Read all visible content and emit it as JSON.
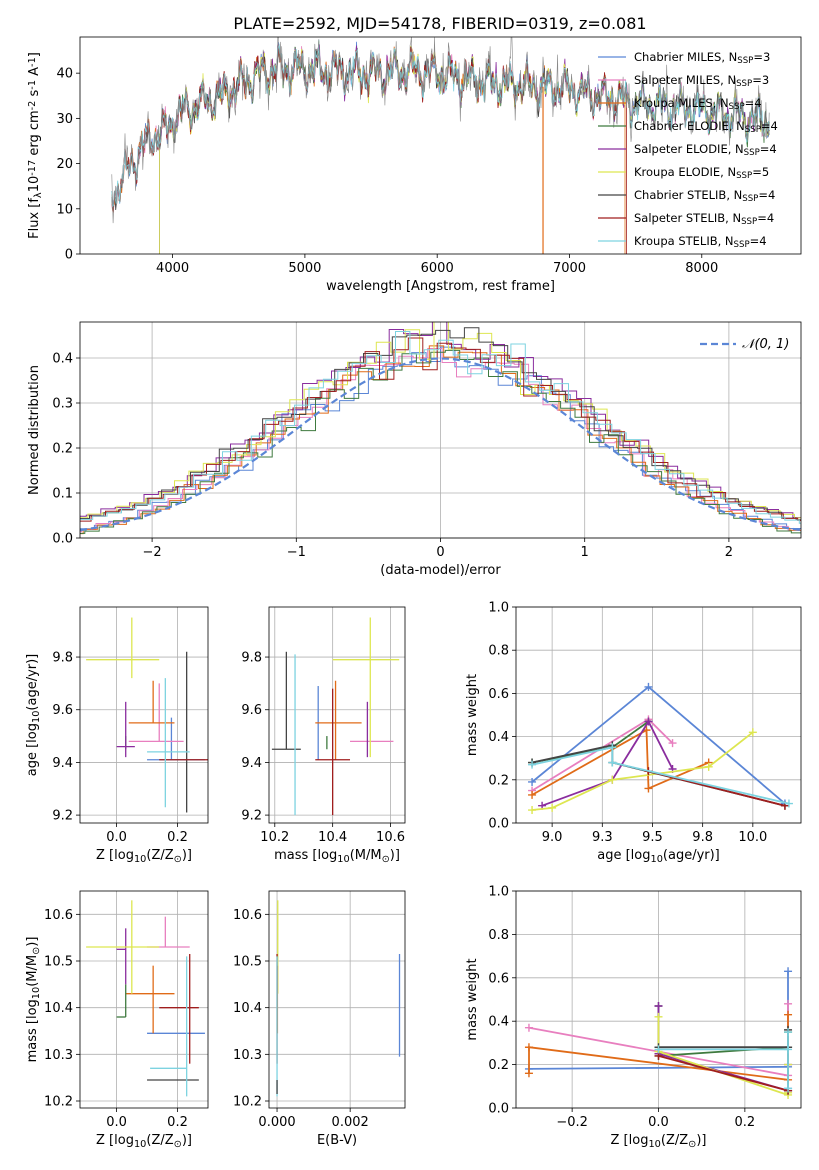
{
  "figure": {
    "title": "PLATE=2592, MJD=54178, FIBERID=0319, z=0.081"
  },
  "colors": {
    "Chabrier MILES": "#5b86d6",
    "Salpeter MILES": "#e87fbf",
    "Kroupa MILES": "#e06b18",
    "Chabrier ELODIE": "#3f7a3f",
    "Salpeter ELODIE": "#8a2d9e",
    "Kroupa ELODIE": "#dde650",
    "Chabrier STELIB": "#444444",
    "Salpeter STELIB": "#a01e1e",
    "Kroupa STELIB": "#7dd3e0",
    "data": "#888888",
    "normal": "#5b86d6"
  },
  "chart_data": [
    {
      "id": "spectrum",
      "type": "line",
      "xlabel": "wavelength [Angstrom, rest frame]",
      "ylabel": "Flux [f$_\\lambda$10$^{-17}$ erg cm$^{-2}$ s$^{-1}$ A$^{-1}$]",
      "xlim": [
        3300,
        8750
      ],
      "ylim": [
        0,
        48
      ],
      "xticks": [
        4000,
        5000,
        6000,
        7000,
        8000
      ],
      "yticks": [
        0,
        10,
        20,
        30,
        40
      ],
      "grid": false,
      "legend_position": "top-right",
      "legend": [
        {
          "label": "Chabrier MILES, N$_{SSP}$=3",
          "color_key": "Chabrier MILES"
        },
        {
          "label": "Salpeter MILES, N$_{SSP}$=3",
          "color_key": "Salpeter MILES"
        },
        {
          "label": "Kroupa MILES, N$_{SSP}$=4",
          "color_key": "Kroupa MILES"
        },
        {
          "label": "Chabrier ELODIE, N$_{SSP}$=4",
          "color_key": "Chabrier ELODIE"
        },
        {
          "label": "Salpeter ELODIE, N$_{SSP}$=4",
          "color_key": "Salpeter ELODIE"
        },
        {
          "label": "Kroupa ELODIE, N$_{SSP}$=5",
          "color_key": "Kroupa ELODIE"
        },
        {
          "label": "Chabrier STELIB, N$_{SSP}$=4",
          "color_key": "Chabrier STELIB"
        },
        {
          "label": "Salpeter STELIB, N$_{SSP}$=4",
          "color_key": "Salpeter STELIB"
        },
        {
          "label": "Kroupa STELIB, N$_{SSP}$=4",
          "color_key": "Kroupa STELIB"
        }
      ],
      "continuum": [
        [
          3550,
          13
        ],
        [
          3650,
          18
        ],
        [
          3750,
          23
        ],
        [
          3850,
          26
        ],
        [
          3950,
          27
        ],
        [
          4050,
          31
        ],
        [
          4200,
          33
        ],
        [
          4350,
          35
        ],
        [
          4500,
          37
        ],
        [
          4650,
          40
        ],
        [
          4800,
          41
        ],
        [
          5000,
          41
        ],
        [
          5200,
          40.5
        ],
        [
          5400,
          40
        ],
        [
          5600,
          40
        ],
        [
          5800,
          40.5
        ],
        [
          6000,
          40
        ],
        [
          6200,
          39
        ],
        [
          6400,
          38
        ],
        [
          6600,
          37.5
        ],
        [
          6800,
          37
        ],
        [
          7000,
          36.5
        ],
        [
          7200,
          35
        ],
        [
          7400,
          34
        ],
        [
          7600,
          33
        ],
        [
          7800,
          32.5
        ],
        [
          8000,
          32
        ],
        [
          8200,
          31
        ],
        [
          8400,
          30
        ],
        [
          8500,
          29.5
        ]
      ],
      "features": {
        "elodie_cutoff_wavelength": 3900,
        "stelib_cutoff_wavelength": 6800,
        "miles_cutoff_wavelength": 7420,
        "salpeter_stelib_end": 7430,
        "emission_line_wavelength": 6563,
        "emission_line_peak": 48
      }
    },
    {
      "id": "residuals",
      "type": "line",
      "xlabel": "(data-model)/error",
      "ylabel": "Normed distribution",
      "xlim": [
        -2.5,
        2.5
      ],
      "ylim": [
        0,
        0.48
      ],
      "xticks": [
        -2,
        -1,
        0,
        1,
        2
      ],
      "yticks": [
        0.0,
        0.1,
        0.2,
        0.3,
        0.4
      ],
      "grid": true,
      "legend_position": "top-right",
      "legend": [
        {
          "label": "$\\mathcal{N}(0, 1)$",
          "color_key": "normal"
        }
      ],
      "bin_width": 0.1,
      "n_models": 9
    },
    {
      "id": "age_vs_Z",
      "type": "scatter",
      "xlabel": "Z [log$_{10}$(Z/Z$_\\odot$)]",
      "ylabel": "age  [log$_{10}$(age/yr)]",
      "xlim": [
        -0.12,
        0.3
      ],
      "ylim": [
        9.17,
        9.99
      ],
      "xticks": [
        0.0,
        0.2
      ],
      "yticks": [
        9.2,
        9.4,
        9.6,
        9.8
      ],
      "grid": true,
      "points": [
        {
          "model": "Chabrier MILES",
          "x": 0.18,
          "xerr": [
            0.08,
            0.11
          ],
          "y": 9.41,
          "yerr": [
            0.0,
            0.16
          ]
        },
        {
          "model": "Salpeter MILES",
          "x": 0.14,
          "xerr": [
            0.1,
            0.08
          ],
          "y": 9.48,
          "yerr": [
            0.0,
            0.22
          ]
        },
        {
          "model": "Kroupa MILES",
          "x": 0.12,
          "xerr": [
            0.08,
            0.07
          ],
          "y": 9.55,
          "yerr": [
            0.0,
            0.16
          ]
        },
        {
          "model": "Chabrier ELODIE",
          "x": 0.03,
          "xerr": [
            0.0,
            0.0
          ],
          "y": 9.45,
          "yerr": [
            0.0,
            0.05
          ]
        },
        {
          "model": "Salpeter ELODIE",
          "x": 0.03,
          "xerr": [
            0.03,
            0.03
          ],
          "y": 9.46,
          "yerr": [
            0.04,
            0.17
          ]
        },
        {
          "model": "Kroupa ELODIE",
          "x": 0.05,
          "xerr": [
            0.15,
            0.09
          ],
          "y": 9.79,
          "yerr": [
            0.07,
            0.16
          ]
        },
        {
          "model": "Chabrier STELIB",
          "x": 0.23,
          "xerr": [
            0.0,
            0.0
          ],
          "y": 9.45,
          "yerr": [
            0.24,
            0.37
          ]
        },
        {
          "model": "Salpeter STELIB",
          "x": 0.24,
          "xerr": [
            0.1,
            0.06
          ],
          "y": 9.41,
          "yerr": [
            0.0,
            0.0
          ]
        },
        {
          "model": "Kroupa STELIB",
          "x": 0.16,
          "xerr": [
            0.06,
            0.08
          ],
          "y": 9.44,
          "yerr": [
            0.21,
            0.28
          ]
        }
      ]
    },
    {
      "id": "age_vs_mass",
      "type": "scatter",
      "xlabel": "mass [log$_{10}$(M/M$_\\odot$)]",
      "ylabel": "",
      "xlim": [
        10.18,
        10.65
      ],
      "ylim": [
        9.17,
        9.99
      ],
      "xticks": [
        10.2,
        10.4,
        10.6
      ],
      "yticks": [
        9.2,
        9.4,
        9.6,
        9.8
      ],
      "grid": true,
      "points": [
        {
          "model": "Chabrier MILES",
          "x": 10.35,
          "xerr": [
            0.0,
            0.0
          ],
          "y": 9.41,
          "yerr": [
            0.0,
            0.28
          ]
        },
        {
          "model": "Salpeter MILES",
          "x": 10.53,
          "xerr": [
            0.07,
            0.08
          ],
          "y": 9.48,
          "yerr": [
            0.0,
            0.0
          ]
        },
        {
          "model": "Kroupa MILES",
          "x": 10.41,
          "xerr": [
            0.07,
            0.09
          ],
          "y": 9.55,
          "yerr": [
            0.14,
            0.16
          ]
        },
        {
          "model": "Chabrier ELODIE",
          "x": 10.38,
          "xerr": [
            0.0,
            0.0
          ],
          "y": 9.45,
          "yerr": [
            0.0,
            0.05
          ]
        },
        {
          "model": "Salpeter ELODIE",
          "x": 10.52,
          "xerr": [
            0.0,
            0.0
          ],
          "y": 9.46,
          "yerr": [
            0.04,
            0.17
          ]
        },
        {
          "model": "Kroupa ELODIE",
          "x": 10.53,
          "xerr": [
            0.13,
            0.1
          ],
          "y": 9.79,
          "yerr": [
            0.37,
            0.16
          ]
        },
        {
          "model": "Chabrier STELIB",
          "x": 10.24,
          "xerr": [
            0.05,
            0.05
          ],
          "y": 9.45,
          "yerr": [
            0.0,
            0.37
          ]
        },
        {
          "model": "Salpeter STELIB",
          "x": 10.4,
          "xerr": [
            0.06,
            0.06
          ],
          "y": 9.41,
          "yerr": [
            0.21,
            0.27
          ]
        },
        {
          "model": "Kroupa STELIB",
          "x": 10.27,
          "xerr": [
            0.0,
            0.0
          ],
          "y": 9.44,
          "yerr": [
            0.24,
            0.37
          ]
        }
      ]
    },
    {
      "id": "weight_vs_age",
      "type": "line",
      "xlabel": "age  [log$_{10}$(age/yr)]",
      "ylabel": "mass weight",
      "xlim": [
        8.82,
        10.24
      ],
      "ylim": [
        0,
        1
      ],
      "xticks": [
        9.0,
        9.25,
        9.5,
        9.75,
        10.0
      ],
      "yticks": [
        0.0,
        0.2,
        0.4,
        0.6,
        0.8,
        1.0
      ],
      "grid": true,
      "series": [
        {
          "model": "Chabrier MILES",
          "x": [
            8.9,
            9.48,
            10.16
          ],
          "y": [
            0.19,
            0.63,
            0.09
          ]
        },
        {
          "model": "Salpeter MILES",
          "x": [
            8.9,
            9.48,
            9.6
          ],
          "y": [
            0.15,
            0.48,
            0.37
          ]
        },
        {
          "model": "Kroupa MILES",
          "x": [
            8.9,
            9.47,
            9.48,
            9.78
          ],
          "y": [
            0.13,
            0.43,
            0.16,
            0.28
          ]
        },
        {
          "model": "Chabrier ELODIE",
          "x": [
            8.9,
            9.3,
            9.48
          ],
          "y": [
            0.28,
            0.35,
            0.47
          ]
        },
        {
          "model": "Salpeter ELODIE",
          "x": [
            8.95,
            9.3,
            9.48,
            9.6
          ],
          "y": [
            0.08,
            0.2,
            0.47,
            0.25
          ]
        },
        {
          "model": "Kroupa ELODIE",
          "x": [
            8.9,
            9.0,
            9.3,
            9.78,
            10.0
          ],
          "y": [
            0.06,
            0.07,
            0.2,
            0.26,
            0.42
          ]
        },
        {
          "model": "Chabrier STELIB",
          "x": [
            8.9,
            9.3,
            9.3,
            10.16
          ],
          "y": [
            0.28,
            0.36,
            0.28,
            0.08
          ]
        },
        {
          "model": "Salpeter STELIB",
          "x": [
            9.48,
            10.16
          ],
          "y": [
            0.24,
            0.08
          ]
        },
        {
          "model": "Kroupa STELIB",
          "x": [
            8.9,
            9.3,
            9.3,
            10.18
          ],
          "y": [
            0.27,
            0.35,
            0.28,
            0.09
          ]
        }
      ]
    },
    {
      "id": "mass_vs_Z",
      "type": "scatter",
      "xlabel": "Z [log$_{10}$(Z/Z$_\\odot$)]",
      "ylabel": "mass [log$_{10}$(M/M$_\\odot$)]",
      "xlim": [
        -0.12,
        0.3
      ],
      "ylim": [
        10.185,
        10.65
      ],
      "xticks": [
        0.0,
        0.2
      ],
      "yticks": [
        10.2,
        10.3,
        10.4,
        10.5,
        10.6
      ],
      "grid": true,
      "points": [
        {
          "model": "Chabrier MILES",
          "x": 0.18,
          "xerr": [
            0.08,
            0.11
          ],
          "y": 10.345,
          "yerr": [
            0.0,
            0.0
          ]
        },
        {
          "model": "Salpeter MILES",
          "x": 0.16,
          "xerr": [
            0.06,
            0.08
          ],
          "y": 10.53,
          "yerr": [
            0.0,
            0.065
          ]
        },
        {
          "model": "Kroupa MILES",
          "x": 0.12,
          "xerr": [
            0.09,
            0.07
          ],
          "y": 10.43,
          "yerr": [
            0.085,
            0.06
          ]
        },
        {
          "model": "Chabrier ELODIE",
          "x": 0.03,
          "xerr": [
            0.03,
            0.0
          ],
          "y": 10.38,
          "yerr": [
            0.0,
            0.07
          ]
        },
        {
          "model": "Salpeter ELODIE",
          "x": 0.03,
          "xerr": [
            0.03,
            0.0
          ],
          "y": 10.525,
          "yerr": [
            0.075,
            0.045
          ]
        },
        {
          "model": "Kroupa ELODIE",
          "x": 0.05,
          "xerr": [
            0.15,
            0.09
          ],
          "y": 10.53,
          "yerr": [
            0.1,
            0.1
          ]
        },
        {
          "model": "Chabrier STELIB",
          "x": 0.23,
          "xerr": [
            0.13,
            0.04
          ],
          "y": 10.245,
          "yerr": [
            0.0,
            0.0
          ]
        },
        {
          "model": "Salpeter STELIB",
          "x": 0.24,
          "xerr": [
            0.1,
            0.03
          ],
          "y": 10.4,
          "yerr": [
            0.12,
            0.115
          ]
        },
        {
          "model": "Kroupa STELIB",
          "x": 0.23,
          "xerr": [
            0.12,
            0.0
          ],
          "y": 10.27,
          "yerr": [
            0.06,
            0.24
          ]
        }
      ]
    },
    {
      "id": "mass_vs_EBV",
      "type": "scatter",
      "xlabel": "E(B-V)",
      "ylabel": "",
      "xlim": [
        -0.00022,
        0.0035
      ],
      "ylim": [
        10.185,
        10.65
      ],
      "xticks": [
        0.0,
        0.002
      ],
      "xticklabels": [
        "0.000",
        "0.002"
      ],
      "yticks": [
        10.2,
        10.3,
        10.4,
        10.5,
        10.6
      ],
      "grid": true,
      "points": [
        {
          "model": "Chabrier MILES",
          "x": 0.00335,
          "xerr": [
            0,
            0
          ],
          "y": 10.405,
          "yerr": [
            0.11,
            0.11
          ]
        },
        {
          "model": "Kroupa ELODIE",
          "x": 2e-05,
          "xerr": [
            0,
            0
          ],
          "y": 10.53,
          "yerr": [
            0.1,
            0.1
          ]
        },
        {
          "model": "Kroupa MILES",
          "x": 1e-05,
          "xerr": [
            0,
            0
          ],
          "y": 10.43,
          "yerr": [
            0.085,
            0.06
          ]
        },
        {
          "model": "Salpeter STELIB",
          "x": 0.0,
          "xerr": [
            0,
            0
          ],
          "y": 10.4,
          "yerr": [
            0.12,
            0.115
          ]
        },
        {
          "model": "Kroupa STELIB",
          "x": 0.0,
          "xerr": [
            0,
            0
          ],
          "y": 10.27,
          "yerr": [
            0.06,
            0.24
          ]
        },
        {
          "model": "Chabrier STELIB",
          "x": 0.0,
          "xerr": [
            0,
            0
          ],
          "y": 10.245,
          "yerr": [
            0.03,
            0.0
          ]
        }
      ]
    },
    {
      "id": "weight_vs_Z",
      "type": "line",
      "xlabel": "Z [log$_{10}$(Z/Z$_\\odot$)]",
      "ylabel": "mass weight",
      "xlim": [
        -0.33,
        0.33
      ],
      "ylim": [
        0,
        1
      ],
      "xticks": [
        -0.2,
        0.0,
        0.2
      ],
      "yticks": [
        0.0,
        0.2,
        0.4,
        0.6,
        0.8,
        1.0
      ],
      "grid": true,
      "series": [
        {
          "model": "Chabrier MILES",
          "x": [
            -0.3,
            0.3,
            0.3,
            0.3
          ],
          "y": [
            0.18,
            0.19,
            0.63,
            0.09
          ]
        },
        {
          "model": "Salpeter MILES",
          "x": [
            -0.3,
            0.3,
            0.3
          ],
          "y": [
            0.37,
            0.15,
            0.48
          ]
        },
        {
          "model": "Kroupa MILES",
          "x": [
            -0.3,
            -0.3,
            0.3,
            0.3,
            0.3
          ],
          "y": [
            0.16,
            0.28,
            0.13,
            0.43,
            0.28
          ]
        },
        {
          "model": "Chabrier ELODIE",
          "x": [
            0.0,
            0.0,
            0.3,
            0.3
          ],
          "y": [
            0.47,
            0.24,
            0.28,
            0.35
          ]
        },
        {
          "model": "Salpeter ELODIE",
          "x": [
            0.0,
            0.0,
            0.3,
            0.3
          ],
          "y": [
            0.47,
            0.25,
            0.08,
            0.2
          ]
        },
        {
          "model": "Kroupa ELODIE",
          "x": [
            0.0,
            0.0,
            0.3,
            0.3,
            0.3
          ],
          "y": [
            0.42,
            0.26,
            0.06,
            0.07,
            0.2
          ]
        },
        {
          "model": "Chabrier STELIB",
          "x": [
            0.0,
            0.3,
            0.3,
            0.3
          ],
          "y": [
            0.28,
            0.28,
            0.36,
            0.08
          ]
        },
        {
          "model": "Salpeter STELIB",
          "x": [
            0.0,
            0.3
          ],
          "y": [
            0.24,
            0.08
          ]
        },
        {
          "model": "Kroupa STELIB",
          "x": [
            0.0,
            0.3,
            0.3,
            0.3
          ],
          "y": [
            0.27,
            0.27,
            0.35,
            0.09
          ]
        }
      ]
    }
  ]
}
